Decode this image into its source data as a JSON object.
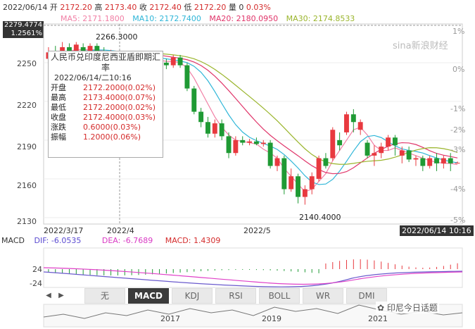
{
  "header": {
    "date": "2022/06/14",
    "open_label": "开",
    "open": "2172.20",
    "high_label": "高",
    "high": "2173.40",
    "close_label": "收",
    "close": "2172.40",
    "low_label": "低",
    "low": "2172.20",
    "vol_label": "量",
    "vol": "0",
    "change_pct": "0.03%"
  },
  "ma": [
    {
      "label": "MA5: 2171.1800",
      "color": "#f17fa5"
    },
    {
      "label": "MA10: 2172.7400",
      "color": "#2fb6d8"
    },
    {
      "label": "MA20: 2180.0950",
      "color": "#e0356a"
    },
    {
      "label": "MA30: 2174.8533",
      "color": "#9ab52c"
    }
  ],
  "cursor_price": "2279.4774",
  "cursor_pct": "1.2561%",
  "y_axis": [
    "2250",
    "2220",
    "2190",
    "2160",
    "2130"
  ],
  "pct_axis": [
    "1%",
    "0%",
    "-1%",
    "-2%",
    "-3%",
    "-4%",
    "-5%"
  ],
  "annotations": {
    "high": "2266.3000",
    "low": "2140.4000"
  },
  "x_dates": [
    "2022/3/17",
    "2022/4",
    "2022/5"
  ],
  "cursor_date": "2022/06/14 10:16",
  "tooltip": {
    "title": "人民币兑印度尼西亚盾即期汇率",
    "datetime": "2022/06/14/二10:16",
    "rows": [
      {
        "k": "开盘",
        "v": "2172.2000(0.02%)"
      },
      {
        "k": "最高",
        "v": "2173.4000(0.07%)"
      },
      {
        "k": "最低",
        "v": "2172.2000(0.02%)"
      },
      {
        "k": "收盘",
        "v": "2172.4000(0.03%)"
      },
      {
        "k": "涨跌",
        "v": "0.6000(0.03%)"
      },
      {
        "k": "振幅",
        "v": "1.2000(0.06%)"
      }
    ]
  },
  "macd": {
    "name": "MACD",
    "dif": "DIF: -6.0535",
    "dea": "DEA: -6.7689",
    "macd": "MACD: 1.4309",
    "axis": [
      "24",
      "-24"
    ]
  },
  "tabs": [
    "无",
    "MACD",
    "KDJ",
    "RSI",
    "BOLL",
    "WR",
    "DMI"
  ],
  "active_tab": "MACD",
  "nav_years": [
    "2017",
    "2019",
    "2021"
  ],
  "watermark": "sina新浪财经",
  "brand": "印尼今日话题",
  "colors": {
    "up": "#e8393f",
    "down": "#1f9a34",
    "bg": "#ffffff"
  },
  "chart_data": {
    "type": "candlestick",
    "ylim": [
      2125,
      2280
    ],
    "candles": [
      {
        "o": 2253,
        "c": 2258,
        "h": 2262,
        "l": 2250
      },
      {
        "o": 2258,
        "c": 2256,
        "h": 2263,
        "l": 2252
      },
      {
        "o": 2256,
        "c": 2262,
        "h": 2266,
        "l": 2254
      },
      {
        "o": 2262,
        "c": 2259,
        "h": 2265,
        "l": 2255
      },
      {
        "o": 2259,
        "c": 2264,
        "h": 2266,
        "l": 2256
      },
      {
        "o": 2262,
        "c": 2258,
        "h": 2265,
        "l": 2256
      },
      {
        "o": 2258,
        "c": 2263,
        "h": 2265,
        "l": 2256
      },
      {
        "o": 2263,
        "c": 2258,
        "h": 2265,
        "l": 2254
      },
      {
        "o": 2258,
        "c": 2256,
        "h": 2262,
        "l": 2252
      },
      {
        "o": 2256,
        "c": 2257,
        "h": 2260,
        "l": 2253
      },
      {
        "o": 2257,
        "c": 2255,
        "h": 2259,
        "l": 2252
      },
      {
        "o": 2255,
        "c": 2256,
        "h": 2258,
        "l": 2252
      },
      {
        "o": 2256,
        "c": 2254,
        "h": 2258,
        "l": 2251
      },
      {
        "o": 2254,
        "c": 2253,
        "h": 2257,
        "l": 2250
      },
      {
        "o": 2253,
        "c": 2252,
        "h": 2256,
        "l": 2249
      },
      {
        "o": 2252,
        "c": 2254,
        "h": 2257,
        "l": 2249
      },
      {
        "o": 2254,
        "c": 2250,
        "h": 2256,
        "l": 2247
      },
      {
        "o": 2250,
        "c": 2248,
        "h": 2253,
        "l": 2245
      },
      {
        "o": 2248,
        "c": 2254,
        "h": 2256,
        "l": 2246
      },
      {
        "o": 2254,
        "c": 2248,
        "h": 2256,
        "l": 2246
      },
      {
        "o": 2248,
        "c": 2230,
        "h": 2250,
        "l": 2228
      },
      {
        "o": 2230,
        "c": 2212,
        "h": 2232,
        "l": 2210
      },
      {
        "o": 2212,
        "c": 2204,
        "h": 2215,
        "l": 2200
      },
      {
        "o": 2204,
        "c": 2195,
        "h": 2208,
        "l": 2192
      },
      {
        "o": 2195,
        "c": 2203,
        "h": 2206,
        "l": 2192
      },
      {
        "o": 2203,
        "c": 2193,
        "h": 2206,
        "l": 2190
      },
      {
        "o": 2193,
        "c": 2180,
        "h": 2196,
        "l": 2176
      },
      {
        "o": 2180,
        "c": 2190,
        "h": 2193,
        "l": 2178
      },
      {
        "o": 2190,
        "c": 2188,
        "h": 2193,
        "l": 2186
      },
      {
        "o": 2188,
        "c": 2189,
        "h": 2191,
        "l": 2186
      },
      {
        "o": 2189,
        "c": 2187,
        "h": 2192,
        "l": 2186
      },
      {
        "o": 2187,
        "c": 2188,
        "h": 2190,
        "l": 2185
      },
      {
        "o": 2188,
        "c": 2170,
        "h": 2190,
        "l": 2168
      },
      {
        "o": 2170,
        "c": 2176,
        "h": 2178,
        "l": 2166
      },
      {
        "o": 2176,
        "c": 2152,
        "h": 2178,
        "l": 2148
      },
      {
        "o": 2152,
        "c": 2162,
        "h": 2168,
        "l": 2150
      },
      {
        "o": 2162,
        "c": 2146,
        "h": 2164,
        "l": 2141
      },
      {
        "o": 2146,
        "c": 2152,
        "h": 2155,
        "l": 2140
      },
      {
        "o": 2152,
        "c": 2162,
        "h": 2165,
        "l": 2148
      },
      {
        "o": 2160,
        "c": 2176,
        "h": 2178,
        "l": 2158
      },
      {
        "o": 2176,
        "c": 2170,
        "h": 2180,
        "l": 2168
      },
      {
        "o": 2176,
        "c": 2198,
        "h": 2200,
        "l": 2174
      },
      {
        "o": 2190,
        "c": 2186,
        "h": 2196,
        "l": 2182
      },
      {
        "o": 2196,
        "c": 2210,
        "h": 2212,
        "l": 2194
      },
      {
        "o": 2210,
        "c": 2204,
        "h": 2214,
        "l": 2196
      },
      {
        "o": 2198,
        "c": 2204,
        "h": 2206,
        "l": 2194
      },
      {
        "o": 2188,
        "c": 2178,
        "h": 2190,
        "l": 2176
      },
      {
        "o": 2178,
        "c": 2180,
        "h": 2186,
        "l": 2170
      },
      {
        "o": 2180,
        "c": 2185,
        "h": 2188,
        "l": 2176
      },
      {
        "o": 2185,
        "c": 2192,
        "h": 2194,
        "l": 2182
      },
      {
        "o": 2192,
        "c": 2186,
        "h": 2194,
        "l": 2178
      },
      {
        "o": 2178,
        "c": 2182,
        "h": 2185,
        "l": 2172
      },
      {
        "o": 2182,
        "c": 2175,
        "h": 2185,
        "l": 2173
      },
      {
        "o": 2175,
        "c": 2176,
        "h": 2178,
        "l": 2170
      },
      {
        "o": 2176,
        "c": 2170,
        "h": 2178,
        "l": 2166
      },
      {
        "o": 2170,
        "c": 2176,
        "h": 2178,
        "l": 2168
      },
      {
        "o": 2176,
        "c": 2172,
        "h": 2180,
        "l": 2166
      },
      {
        "o": 2172,
        "c": 2176,
        "h": 2178,
        "l": 2168
      },
      {
        "o": 2176,
        "c": 2172,
        "h": 2180,
        "l": 2166
      },
      {
        "o": 2172.2,
        "c": 2172.4,
        "h": 2173.4,
        "l": 2172.2
      }
    ],
    "ma5": [
      2256,
      2257,
      2258,
      2259,
      2260,
      2260,
      2260,
      2260,
      2259,
      2258,
      2257,
      2256,
      2255,
      2255,
      2254,
      2253,
      2252,
      2251,
      2251,
      2250,
      2246,
      2238,
      2228,
      2218,
      2208,
      2200,
      2194,
      2190,
      2189,
      2188,
      2187,
      2183,
      2180,
      2176,
      2168,
      2162,
      2156,
      2150,
      2152,
      2158,
      2164,
      2174,
      2182,
      2190,
      2198,
      2200,
      2194,
      2186,
      2182,
      2182,
      2184,
      2182,
      2180,
      2178,
      2176,
      2174,
      2173,
      2172,
      2172,
      2171
    ]
  }
}
